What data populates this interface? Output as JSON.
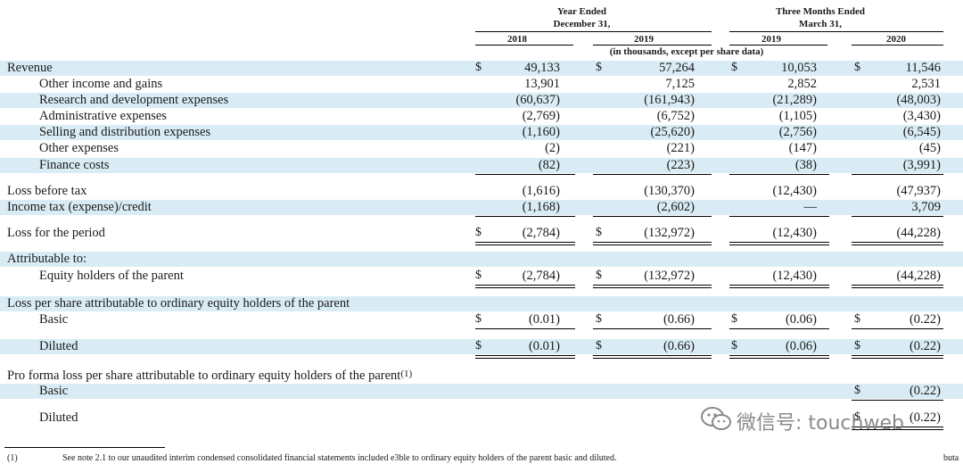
{
  "header": {
    "year_ended": "Year Ended",
    "year_ended_date": "December 31,",
    "three_months": "Three Months Ended",
    "three_months_date": "March 31,",
    "units": "(in thousands, except per share data)",
    "columns": [
      "2018",
      "2019",
      "2019",
      "2020"
    ]
  },
  "rows": [
    {
      "label": "Revenue",
      "dollar": true,
      "values": [
        "49,133",
        "57,264",
        "10,053",
        "11,546"
      ]
    },
    {
      "label": "Other income and gains",
      "values": [
        "13,901",
        "7,125",
        "2,852",
        "2,531"
      ]
    },
    {
      "label": "Research and development expenses",
      "values": [
        "(60,637)",
        "(161,943)",
        "(21,289)",
        "(48,003)"
      ]
    },
    {
      "label": "Administrative expenses",
      "values": [
        "(2,769)",
        "(6,752)",
        "(1,105)",
        "(3,430)"
      ]
    },
    {
      "label": "Selling and distribution expenses",
      "values": [
        "(1,160)",
        "(25,620)",
        "(2,756)",
        "(6,545)"
      ]
    },
    {
      "label": "Other expenses",
      "values": [
        "(2)",
        "(221)",
        "(147)",
        "(45)"
      ]
    },
    {
      "label": "Finance costs",
      "values": [
        "(82)",
        "(223)",
        "(38)",
        "(3,991)"
      ]
    },
    {
      "label": "Loss before tax",
      "values": [
        "(1,616)",
        "(130,370)",
        "(12,430)",
        "(47,937)"
      ]
    },
    {
      "label": "Income tax (expense)/credit",
      "values": [
        "(1,168)",
        "(2,602)",
        "—",
        "3,709"
      ]
    },
    {
      "label": "Loss for the period",
      "values": [
        "(2,784)",
        "(132,972)",
        "(12,430)",
        "(44,228)"
      ]
    },
    {
      "label": "Attributable to:"
    },
    {
      "label": "Equity holders of the parent",
      "values": [
        "(2,784)",
        "(132,972)",
        "(12,430)",
        "(44,228)"
      ]
    },
    {
      "label": "Loss per share attributable to ordinary equity holders of the parent"
    },
    {
      "label": "Basic",
      "values": [
        "(0.01)",
        "(0.66)",
        "(0.06)",
        "(0.22)"
      ]
    },
    {
      "label": "Diluted",
      "values": [
        "(0.01)",
        "(0.66)",
        "(0.06)",
        "(0.22)"
      ]
    },
    {
      "label": "Pro forma loss per share attributable to ordinary equity holders of the parent",
      "sup": "(1)"
    },
    {
      "label": "Basic",
      "values": [
        "",
        "",
        "",
        "(0.22)"
      ]
    },
    {
      "label": "Diluted",
      "values": [
        "",
        "",
        "",
        "(0.22)"
      ]
    }
  ],
  "currency_symbol": "$",
  "footnote": {
    "marker": "(1)",
    "text": "See note 2.1 to our unaudited interim condensed consolidated financial statements included e3ble to ordinary equity holders of the parent basic and diluted.",
    "right_fragment": "buta"
  },
  "watermark": {
    "text": "微信号: touchweb"
  },
  "colors": {
    "band": "#d9ecf5",
    "text": "#1a1a1a",
    "watermark": "#8a8a8a"
  }
}
